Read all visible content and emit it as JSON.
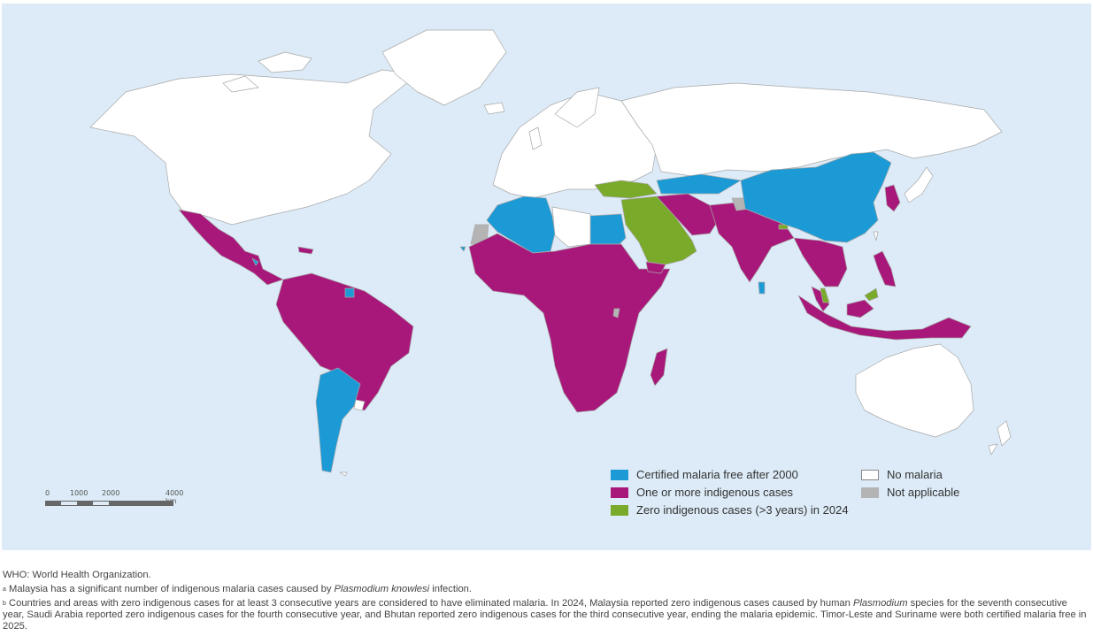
{
  "colors": {
    "ocean": "#dcebf7",
    "certified": "#1b9ad6",
    "indigenous": "#a8187a",
    "zero": "#7aaa2a",
    "no_malaria": "#ffffff",
    "not_applicable": "#b4b4b4",
    "border": "#a8a8a8"
  },
  "legend": {
    "certified": "Certified malaria free after 2000",
    "indigenous": "One or more indigenous cases",
    "zero": "Zero indigenous cases (>3 years) in 2024",
    "no_malaria": "No malaria",
    "not_applicable": "Not applicable"
  },
  "scale": {
    "labels": [
      "0",
      "1000",
      "2000",
      "4000 km"
    ]
  },
  "notes": {
    "who": "WHO: World Health Organization.",
    "a_mark": "a",
    "a_pre": "Malaysia has a significant number of indigenous malaria cases caused by ",
    "a_ital": "Plasmodium knowlesi",
    "a_post": " infection.",
    "b_mark": "b",
    "b_pre": "Countries and areas with zero indigenous cases for at least 3 consecutive years are considered to have eliminated malaria. In 2024, Malaysia reported zero indigenous cases caused by human ",
    "b_ital": "Plasmodium",
    "b_post": " species for the seventh consecutive year, Saudi Arabia reported zero indigenous cases for the fourth consecutive year, and Bhutan reported zero indigenous cases for the third consecutive year, ending the malaria epidemic. Timor-Leste and Suriname were both certified malaria free in 2025."
  }
}
